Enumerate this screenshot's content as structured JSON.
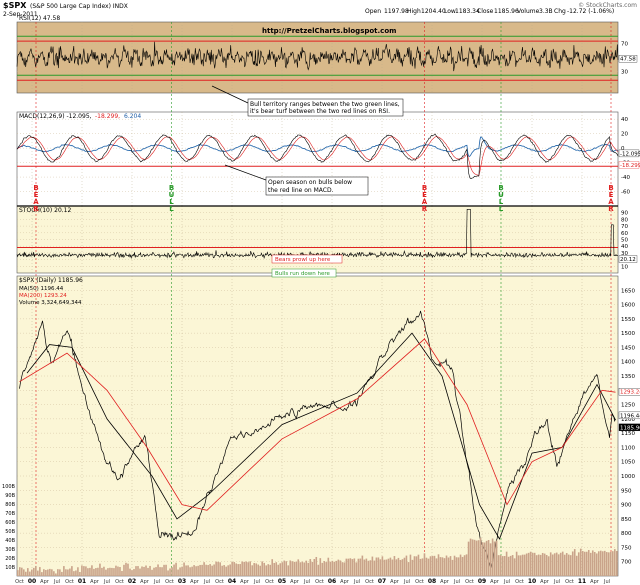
{
  "header": {
    "symbol": "$SPX",
    "name": "(S&P 500 Large Cap Index) INDX",
    "date": "2-Sep-2011",
    "open_label": "Open",
    "open": "1197.98",
    "high_label": "High",
    "high": "1204.40",
    "low_label": "Low",
    "low": "1183.34",
    "close_label": "Close",
    "close": "1185.96",
    "volume_label": "Volume",
    "volume": "3.3B",
    "chg_label": "Chg",
    "chg": "-12.72 (-1.06%)",
    "watermark": "© StockCharts.com",
    "website": "http://PretzelCharts.blogspot.com"
  },
  "annotations": {
    "rsi_note_line1": "Bull territory ranges between the two green lines,",
    "rsi_note_line2": "it's bear turf between the two red lines on RSI.",
    "macd_note_line1": "Open season on bulls below",
    "macd_note_line2": "the red line on MACD.",
    "stoch_bears": "Bears prowl up here",
    "stoch_bulls": "Bulls run down here",
    "signals": [
      {
        "label": "BEAR",
        "x_date": 2000.08,
        "color": "#e02020"
      },
      {
        "label": "BULL",
        "x_date": 2002.79,
        "color": "#2a9a2a"
      },
      {
        "label": "BEAR",
        "x_date": 2007.85,
        "color": "#e02020"
      },
      {
        "label": "BULL",
        "x_date": 2009.38,
        "color": "#2a9a2a"
      },
      {
        "label": "BEAR",
        "x_date": 2011.58,
        "color": "#e02020"
      }
    ]
  },
  "chart_data": [
    {
      "type": "line",
      "panel": "rsi",
      "title": "RSI(12) 47.58",
      "value": 47.58,
      "ylim": [
        0,
        100
      ],
      "yticks": [
        30,
        50,
        70
      ],
      "value_label": "47.58",
      "reference_lines": [
        {
          "y": 80,
          "color": "#2a9a2a"
        },
        {
          "y": 73,
          "color": "#e02020"
        },
        {
          "y": 25,
          "color": "#2a9a2a"
        },
        {
          "y": 18,
          "color": "#e02020"
        }
      ]
    },
    {
      "type": "line",
      "panel": "macd",
      "title": "MACD(12,26,9) -12.095, -18.299, 6.204",
      "title_main": "MACD(12,26,9) -12.095,",
      "title_signal": "-18.299,",
      "title_hist": "6.204",
      "ylim": [
        -80,
        50
      ],
      "yticks": [
        40,
        20,
        0,
        -20,
        -40,
        -60
      ],
      "reference_lines": [
        {
          "y": -25,
          "color": "#e02020"
        }
      ],
      "value_labels": [
        "-12.095",
        "-18.299"
      ]
    },
    {
      "type": "line",
      "panel": "stochastic",
      "title": "STOCH(10) 20.12",
      "value": 20.12,
      "ylim": [
        0,
        100
      ],
      "yticks": [
        10,
        20,
        30,
        40,
        50,
        60,
        70,
        80,
        90
      ],
      "value_label": "20.12",
      "reference_lines": [
        {
          "y": 38,
          "color": "#e02020"
        }
      ]
    },
    {
      "type": "line",
      "panel": "price",
      "title": "$SPX (Daily) 1185.96",
      "legend": [
        "MA(50) 1196.44",
        "MA(200) 1293.24",
        "Volume 3,324,649,344"
      ],
      "series": [
        {
          "name": "$SPX (Daily) 1185.96",
          "color": "#000000",
          "x": [
            1999.75,
            2000.21,
            2000.38,
            2000.7,
            2001.28,
            2001.71,
            2002.25,
            2002.55,
            2002.78,
            2003.21,
            2004.0,
            2005.0,
            2006.0,
            2006.5,
            2007.0,
            2007.45,
            2007.78,
            2008.0,
            2008.4,
            2008.88,
            2009.18,
            2009.5,
            2010.3,
            2010.5,
            2011.0,
            2011.3,
            2011.55,
            2011.6,
            2011.67
          ],
          "y": [
            1300,
            1520,
            1400,
            1510,
            1150,
            970,
            1150,
            800,
            780,
            800,
            1120,
            1200,
            1260,
            1250,
            1420,
            1530,
            1560,
            1400,
            1380,
            850,
            680,
            940,
            1210,
            1030,
            1260,
            1360,
            1120,
            1200,
            1185.96
          ]
        },
        {
          "name": "MA(50) 1196.44",
          "color": "#000000",
          "x": [
            1999.9,
            2000.35,
            2000.8,
            2001.5,
            2002.4,
            2002.9,
            2003.5,
            2005.0,
            2006.5,
            2007.6,
            2008.2,
            2008.95,
            2009.35,
            2010.0,
            2010.6,
            2011.3,
            2011.67
          ],
          "y": [
            1360,
            1460,
            1450,
            1200,
            1000,
            850,
            930,
            1180,
            1290,
            1500,
            1350,
            900,
            780,
            1080,
            1100,
            1320,
            1196.44
          ]
        },
        {
          "name": "MA(200) 1293.24",
          "color": "#e02020",
          "x": [
            1999.75,
            2000.7,
            2001.5,
            2002.3,
            2003.0,
            2003.5,
            2005.0,
            2006.5,
            2007.85,
            2008.7,
            2009.5,
            2010.0,
            2010.6,
            2011.4,
            2011.67
          ],
          "y": [
            1330,
            1430,
            1300,
            1100,
            900,
            880,
            1130,
            1270,
            1480,
            1250,
            900,
            1050,
            1100,
            1300,
            1293.24
          ]
        }
      ],
      "ylim": [
        650,
        1700
      ],
      "yticks": [
        700,
        750,
        800,
        850,
        900,
        950,
        1000,
        1050,
        1100,
        1150,
        1200,
        1250,
        1300,
        1350,
        1400,
        1450,
        1500,
        1550,
        1600,
        1650
      ],
      "value_labels": [
        "1293.24",
        "1196.44",
        "1185.96"
      ],
      "volume": {
        "ylim": [
          0,
          100
        ],
        "yticks": [
          10,
          20,
          30,
          40,
          50,
          60,
          70,
          80,
          90,
          100
        ],
        "label_suffix": "B"
      }
    }
  ],
  "x_axis": {
    "year_labels": [
      "00",
      "01",
      "02",
      "03",
      "04",
      "05",
      "06",
      "07",
      "08",
      "09",
      "10",
      "11"
    ],
    "month_labels": [
      "Oct",
      "Apr",
      "Jul",
      "Oct"
    ],
    "month_positions": [
      0.75,
      0.25,
      0.5,
      0.75
    ],
    "start": 1999.7,
    "end": 2011.72
  }
}
